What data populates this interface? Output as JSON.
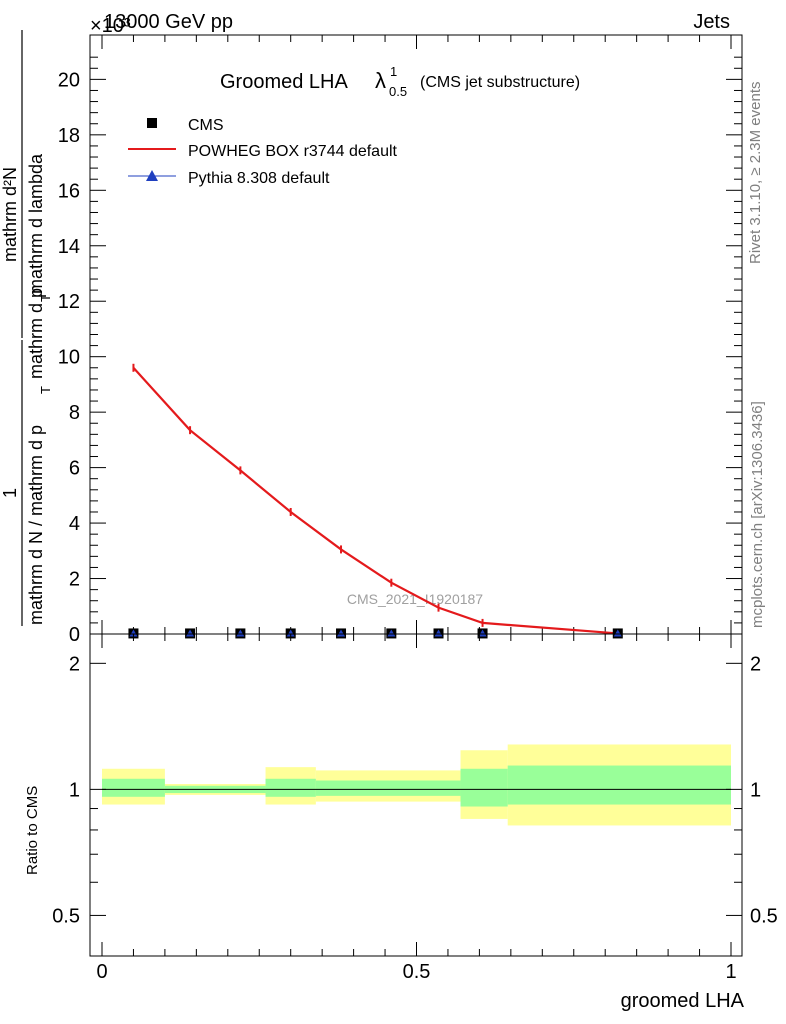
{
  "header": {
    "left": "13000 GeV pp",
    "right": "Jets",
    "exponent": "×10³"
  },
  "side": {
    "rivet": "Rivet 3.1.10, ≥ 2.3M events",
    "mcplots": "mcplots.cern.ch [arXiv:1306.3436]"
  },
  "watermark": "CMS_2021_I1920187",
  "chart_data": [
    {
      "type": "line",
      "title_main": "Groomed LHA",
      "title_symbol": "λ",
      "title_sup": "1",
      "title_sub": "0.5",
      "title_note": "(CMS jet substructure)",
      "ylabel_num": "mathrm dN",
      "ylabel_den": "mathrm d p_T mathrm d lambda",
      "ylabel_prefactor_num": "1",
      "ylabel_prefactor_den": "mathrm d N / mathrm d p_T",
      "ylabel_display_num": "mathrm d²N",
      "ylabel_display_den_a": "mathrm d p",
      "ylabel_display_den_b": "T",
      "ylabel_display_den_c": " mathrm d lambda",
      "ylabel_prefactor_display_a": "mathrm d N / mathrm d p",
      "ylabel_prefactor_display_b": "T",
      "xlim": [
        0,
        1
      ],
      "ylim": [
        0,
        21.6
      ],
      "y_ticks": [
        0,
        2,
        4,
        6,
        8,
        10,
        12,
        14,
        16,
        18,
        20
      ],
      "legend": [
        {
          "name": "CMS",
          "marker": "square",
          "color": "#000000"
        },
        {
          "name": "POWHEG BOX r3744 default",
          "marker": "line",
          "color": "#e41a1c"
        },
        {
          "name": "Pythia 8.308 default",
          "marker": "triangle",
          "color": "#1f3fbf"
        }
      ],
      "series": [
        {
          "name": "CMS",
          "x": [
            0.05,
            0.14,
            0.22,
            0.3,
            0.38,
            0.46,
            0.535,
            0.605,
            0.82
          ],
          "y": [
            0.02,
            0.02,
            0.02,
            0.02,
            0.02,
            0.02,
            0.02,
            0.02,
            0.02
          ]
        },
        {
          "name": "POWHEG BOX r3744 default",
          "x": [
            0.05,
            0.14,
            0.22,
            0.3,
            0.38,
            0.46,
            0.535,
            0.605,
            0.82
          ],
          "y": [
            9.6,
            7.35,
            5.9,
            4.4,
            3.05,
            1.85,
            0.95,
            0.4,
            0.02
          ]
        }
      ]
    },
    {
      "type": "area",
      "ylabel": "Ratio to CMS",
      "xlabel": "groomed LHA",
      "xlim": [
        0,
        1
      ],
      "ylim": [
        0.4,
        2.35
      ],
      "y_scale": "log",
      "y_ticks": [
        0.5,
        1,
        2
      ],
      "x_ticks": [
        0,
        0.5,
        1
      ],
      "bins": [
        {
          "x0": 0.0,
          "x1": 0.1,
          "inner": [
            0.96,
            1.06
          ],
          "outer": [
            0.92,
            1.12
          ]
        },
        {
          "x0": 0.1,
          "x1": 0.26,
          "inner": [
            0.98,
            1.02
          ],
          "outer": [
            0.97,
            1.03
          ]
        },
        {
          "x0": 0.26,
          "x1": 0.34,
          "inner": [
            0.96,
            1.06
          ],
          "outer": [
            0.92,
            1.13
          ]
        },
        {
          "x0": 0.34,
          "x1": 0.57,
          "inner": [
            0.965,
            1.05
          ],
          "outer": [
            0.935,
            1.11
          ]
        },
        {
          "x0": 0.57,
          "x1": 0.645,
          "inner": [
            0.91,
            1.12
          ],
          "outer": [
            0.85,
            1.24
          ]
        },
        {
          "x0": 0.645,
          "x1": 1.0,
          "inner": [
            0.92,
            1.14
          ],
          "outer": [
            0.82,
            1.28
          ]
        }
      ]
    }
  ]
}
